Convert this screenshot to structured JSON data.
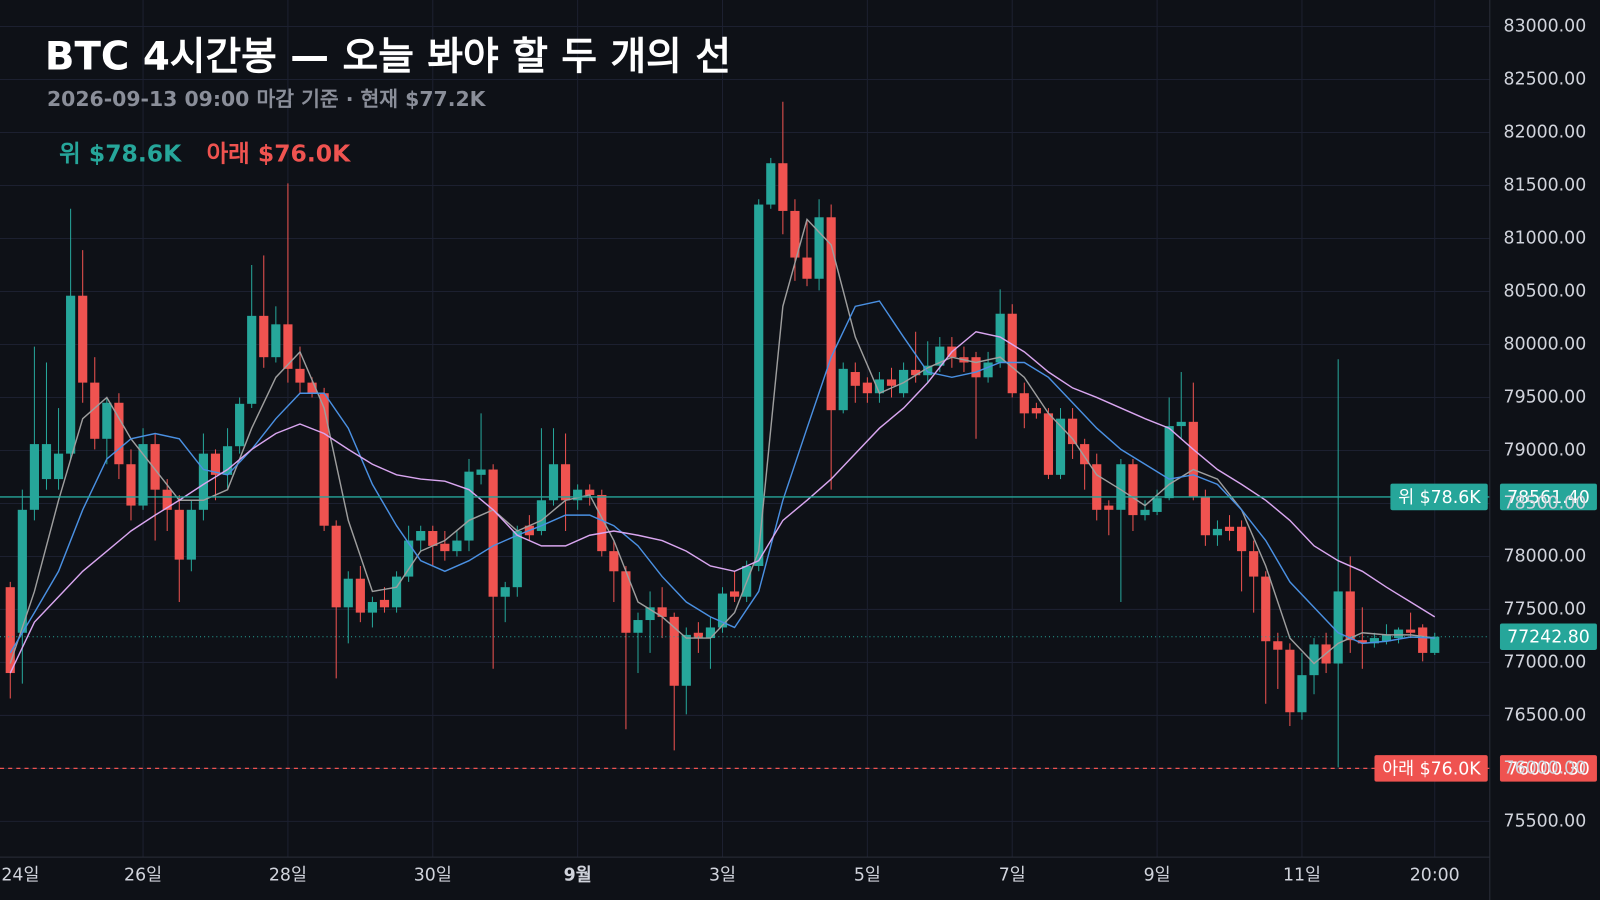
{
  "chart_data": {
    "type": "candlestick",
    "title": "BTC 4시간봉 — 오늘 봐야 할 두 개의 선",
    "subtitle": "2026-09-13 09:00 마감 기준 · 현재 $77.2K",
    "up_color": "#26a69a",
    "down_color": "#ef5350",
    "grid": true,
    "xlim": [
      -0.85,
      122.56
    ],
    "xticks": [
      {
        "value": -1,
        "label": "24일"
      },
      {
        "value": 11,
        "label": "26일"
      },
      {
        "value": 23,
        "label": "28일"
      },
      {
        "value": 35,
        "label": "30일"
      },
      {
        "value": 47,
        "label": "9월",
        "bold": true
      },
      {
        "value": 59,
        "label": "3일"
      },
      {
        "value": 71,
        "label": "5일"
      },
      {
        "value": 83,
        "label": "7일"
      },
      {
        "value": 95,
        "label": "9일"
      },
      {
        "value": 107,
        "label": "11일"
      },
      {
        "value": 118,
        "label": "20:00"
      }
    ],
    "ylim": [
      75163,
      83250
    ],
    "yticks": [
      {
        "value": 75500,
        "label": "75500.00"
      },
      {
        "value": 76000,
        "label": "76000.00"
      },
      {
        "value": 76500,
        "label": "76500.00"
      },
      {
        "value": 77000,
        "label": "77000.00"
      },
      {
        "value": 77500,
        "label": "77500.00"
      },
      {
        "value": 78000,
        "label": "78000.00"
      },
      {
        "value": 78500,
        "label": "78500.00"
      },
      {
        "value": 79000,
        "label": "79000.00"
      },
      {
        "value": 79500,
        "label": "79500.00"
      },
      {
        "value": 80000,
        "label": "80000.00"
      },
      {
        "value": 80500,
        "label": "80500.00"
      },
      {
        "value": 81000,
        "label": "81000.00"
      },
      {
        "value": 81500,
        "label": "81500.00"
      },
      {
        "value": 82000,
        "label": "82000.00"
      },
      {
        "value": 82500,
        "label": "82500.00"
      },
      {
        "value": 83000,
        "label": "83000.00"
      }
    ],
    "open": [
      77710,
      77280,
      78440,
      78730,
      78730,
      78970,
      80460,
      79640,
      79110,
      79450,
      78870,
      78480,
      79060,
      78630,
      78440,
      77970,
      78440,
      78970,
      78770,
      79040,
      79440,
      80270,
      79880,
      80190,
      79770,
      79640,
      79540,
      78290,
      77520,
      77790,
      77470,
      77590,
      77520,
      77810,
      78150,
      78240,
      78120,
      78050,
      78150,
      78770,
      78820,
      77620,
      77710,
      78290,
      78240,
      78530,
      78870,
      78530,
      78630,
      78580,
      78050,
      77860,
      77280,
      77400,
      77520,
      77430,
      76780,
      77280,
      77230,
      77330,
      77670,
      77620,
      77910,
      81320,
      81710,
      81260,
      80820,
      80620,
      81200,
      79380,
      79740,
      79640,
      79540,
      79670,
      79540,
      79760,
      79710,
      79800,
      79980,
      79880,
      79880,
      79690,
      79830,
      80290,
      79540,
      79400,
      79350,
      78770,
      79300,
      79060,
      78870,
      78480,
      78440,
      78870,
      78390,
      78420,
      78550,
      79230,
      79270,
      78560,
      78200,
      78280,
      78280,
      78050,
      77810,
      77200,
      77120,
      76530,
      76880,
      77170,
      76990,
      77670,
      77210,
      77180,
      77200,
      77230,
      77310,
      77330,
      77090
    ],
    "high": [
      77760,
      78630,
      79980,
      79830,
      79400,
      81280,
      80890,
      79880,
      79500,
      79540,
      79010,
      79210,
      79160,
      78730,
      78580,
      78530,
      79160,
      79010,
      79210,
      79500,
      80750,
      80840,
      80360,
      81520,
      79980,
      79690,
      79590,
      78340,
      77860,
      77910,
      77620,
      77710,
      77860,
      78290,
      78290,
      78290,
      78240,
      78240,
      78920,
      79350,
      78870,
      77760,
      78290,
      78390,
      79210,
      79210,
      79160,
      78680,
      78680,
      78630,
      78150,
      77910,
      77470,
      77670,
      77710,
      77470,
      77330,
      77380,
      77430,
      77710,
      77860,
      77960,
      81370,
      81760,
      82290,
      81370,
      81180,
      81370,
      81320,
      79830,
      79830,
      79690,
      79740,
      79780,
      79830,
      80120,
      80030,
      80070,
      80070,
      79980,
      79930,
      79930,
      80520,
      80380,
      79640,
      79450,
      79400,
      79400,
      79400,
      79110,
      78970,
      78530,
      78920,
      78920,
      78530,
      78630,
      79500,
      79740,
      79640,
      78630,
      78340,
      78390,
      78340,
      78150,
      77860,
      77280,
      77180,
      77090,
      77230,
      77280,
      79860,
      78000,
      77520,
      77280,
      77360,
      77330,
      77470,
      77360,
      77280
    ],
    "low": [
      76660,
      76800,
      78340,
      78630,
      78630,
      78920,
      79450,
      79010,
      78870,
      78730,
      78340,
      78440,
      78150,
      78240,
      77570,
      77860,
      78340,
      78530,
      78630,
      78970,
      79400,
      79780,
      79830,
      79640,
      79540,
      79500,
      78240,
      76850,
      77180,
      77380,
      77330,
      77470,
      77470,
      77760,
      78050,
      77910,
      77960,
      78000,
      78050,
      78680,
      76940,
      77380,
      77620,
      78150,
      78200,
      78480,
      78240,
      78440,
      78480,
      78000,
      77570,
      76370,
      76900,
      77090,
      77230,
      76170,
      76510,
      77090,
      76940,
      77280,
      77570,
      77570,
      77860,
      81280,
      81040,
      80600,
      80550,
      80510,
      78630,
      79350,
      79450,
      79450,
      79450,
      79500,
      79500,
      79640,
      79640,
      79740,
      79780,
      79740,
      79110,
      79640,
      79780,
      79500,
      79210,
      79300,
      78730,
      78730,
      78920,
      78630,
      78340,
      78200,
      77570,
      78240,
      78340,
      78390,
      78530,
      79110,
      78530,
      78100,
      78100,
      78150,
      77670,
      77470,
      76610,
      76750,
      76400,
      76460,
      76700,
      76900,
      76010,
      77090,
      76940,
      77140,
      77170,
      77180,
      77230,
      77010,
      77070
    ],
    "close": [
      76900,
      78440,
      79060,
      79060,
      78970,
      80460,
      79640,
      79110,
      79450,
      78870,
      78480,
      79060,
      78630,
      78440,
      77970,
      78440,
      78970,
      78770,
      79040,
      79440,
      80270,
      79880,
      80190,
      79770,
      79640,
      79540,
      78290,
      77520,
      77790,
      77470,
      77570,
      77520,
      77810,
      78150,
      78240,
      78100,
      78050,
      78150,
      78800,
      78820,
      77620,
      77710,
      78240,
      78200,
      78530,
      78870,
      78530,
      78630,
      78580,
      78050,
      77860,
      77280,
      77400,
      77520,
      77430,
      76780,
      77260,
      77230,
      77330,
      77650,
      77620,
      77910,
      81320,
      81710,
      81260,
      80820,
      80620,
      81200,
      79380,
      79770,
      79610,
      79540,
      79670,
      79610,
      79760,
      79710,
      79800,
      79980,
      79880,
      79830,
      79690,
      79830,
      80290,
      79540,
      79350,
      79350,
      78770,
      79300,
      79060,
      78870,
      78440,
      78440,
      78870,
      78390,
      78440,
      78550,
      79230,
      79270,
      78560,
      78200,
      78260,
      78240,
      78050,
      77810,
      77200,
      77120,
      76530,
      76880,
      77170,
      76990,
      77670,
      77210,
      77180,
      77230,
      77260,
      77310,
      77280,
      77090,
      77242.8
    ],
    "ma_x": [
      0,
      2,
      4,
      6,
      8,
      10,
      12,
      14,
      16,
      18,
      20,
      22,
      24,
      26,
      28,
      30,
      32,
      34,
      36,
      38,
      40,
      42,
      44,
      46,
      48,
      50,
      52,
      54,
      56,
      58,
      60,
      62,
      64,
      66,
      68,
      70,
      72,
      74,
      76,
      78,
      80,
      82,
      84,
      86,
      88,
      90,
      92,
      94,
      96,
      98,
      100,
      102,
      104,
      106,
      108,
      110,
      112,
      114,
      116,
      118
    ],
    "ma_series": [
      {
        "color": "#9e9e9e",
        "values": [
          76990,
          77670,
          78530,
          79300,
          79500,
          79110,
          78820,
          78530,
          78530,
          78630,
          79210,
          79690,
          79930,
          79400,
          78340,
          77670,
          77710,
          78050,
          78150,
          78340,
          78440,
          78240,
          78340,
          78530,
          78580,
          78150,
          77570,
          77430,
          77230,
          77230,
          77470,
          78050,
          80360,
          81180,
          80940,
          80070,
          79540,
          79640,
          79780,
          79880,
          79830,
          79880,
          79690,
          79350,
          79110,
          78770,
          78630,
          78480,
          78680,
          78820,
          78730,
          78440,
          77910,
          77230,
          76990,
          77180,
          77280,
          77260,
          77260,
          77230
        ]
      },
      {
        "color": "#4a90e2",
        "values": [
          77090,
          77470,
          77860,
          78440,
          78920,
          79110,
          79160,
          79110,
          78820,
          78770,
          79010,
          79300,
          79540,
          79540,
          79210,
          78680,
          78290,
          77960,
          77860,
          77960,
          78100,
          78200,
          78290,
          78390,
          78390,
          78290,
          78100,
          77810,
          77570,
          77430,
          77330,
          77670,
          78530,
          79210,
          79880,
          80360,
          80410,
          80070,
          79740,
          79690,
          79740,
          79830,
          79830,
          79690,
          79450,
          79210,
          79010,
          78870,
          78730,
          78770,
          78680,
          78440,
          78150,
          77760,
          77520,
          77280,
          77180,
          77200,
          77240,
          77230
        ]
      },
      {
        "color": "#d9a6f0",
        "values": [
          76900,
          77380,
          77620,
          77860,
          78050,
          78240,
          78390,
          78530,
          78680,
          78820,
          79010,
          79160,
          79250,
          79160,
          79010,
          78870,
          78770,
          78730,
          78710,
          78630,
          78440,
          78200,
          78100,
          78100,
          78200,
          78240,
          78200,
          78150,
          78050,
          77910,
          77860,
          77960,
          78340,
          78530,
          78730,
          78970,
          79210,
          79400,
          79640,
          79930,
          80120,
          80070,
          79930,
          79740,
          79590,
          79500,
          79400,
          79300,
          79210,
          79010,
          78820,
          78680,
          78530,
          78340,
          78100,
          77960,
          77860,
          77710,
          77570,
          77430
        ]
      }
    ],
    "levels": [
      {
        "label": "위 $78.6K",
        "value": 78561.4,
        "value_label": "78561.40",
        "color": "#26a69a",
        "style": "solid"
      },
      {
        "label": "아래 $76.0K",
        "value": 76000.3,
        "value_label": "76000.30",
        "color": "#ef5350",
        "style": "dashed"
      }
    ],
    "last": {
      "value": 77242.8,
      "label": "77242.80",
      "color": "#26a69a"
    }
  }
}
